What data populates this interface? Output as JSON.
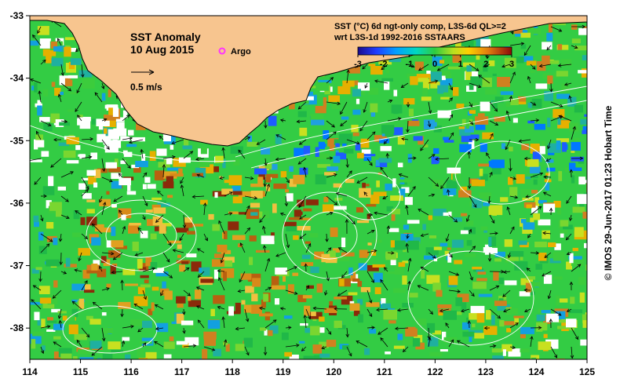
{
  "map": {
    "title_line1": "SST Anomaly",
    "title_line2": "10 Aug 2015",
    "argo_label": "Argo",
    "vector_scale_label": "0.5 m/s",
    "product_line1": "SST (°C) 6d ngt-only comp, L3S-6d QL>=2",
    "product_line2": "wrt L3S-1d 1992-2016 SSTAARS",
    "colorbar_ticks": [
      "-3",
      "-2",
      "-1",
      "0",
      "1",
      "2",
      "3"
    ],
    "colorbar_range": [
      -3,
      3
    ],
    "x_ticks": [
      "114",
      "115",
      "116",
      "117",
      "118",
      "119",
      "120",
      "121",
      "122",
      "123",
      "124",
      "125"
    ],
    "y_ticks": [
      "-33",
      "-34",
      "-35",
      "-36",
      "-37",
      "-38"
    ],
    "lon_range": [
      114,
      125
    ],
    "lat_range": [
      -38.5,
      -33
    ],
    "credit": "© IMOS 29-Jun-2017 01:23 Hobart Time",
    "colors": {
      "land": "#f7c58f",
      "ocean_base": "#33cc44",
      "coast": "#000000",
      "argo": "#ff33ff",
      "contour": "#ffffff",
      "arrow": "#000000"
    }
  }
}
